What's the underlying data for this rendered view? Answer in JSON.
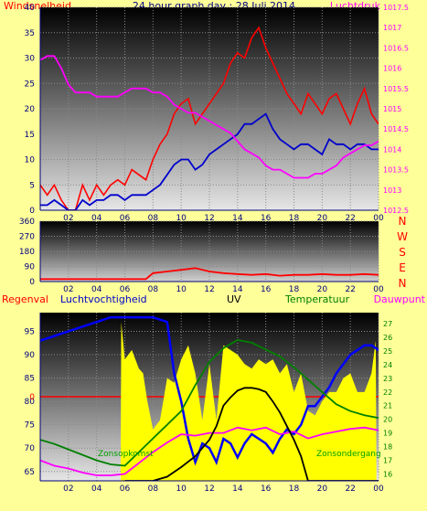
{
  "title": "24 hour graph day : 28 Juli 2014",
  "chart_data": [
    {
      "type": "line",
      "id": "wind_pressure",
      "xticks": [
        "02",
        "04",
        "06",
        "08",
        "10",
        "12",
        "14",
        "16",
        "18",
        "20",
        "22",
        "00"
      ],
      "left_label": "Windsnelheid",
      "right_label": "Luchtdruk",
      "yleft_ticks": [
        "0",
        "5",
        "10",
        "15",
        "20",
        "25",
        "30",
        "35",
        "40"
      ],
      "ylim_left": [
        0,
        40
      ],
      "yright_ticks": [
        "1012.5",
        "1013",
        "1013.5",
        "1014",
        "1014.5",
        "1015",
        "1015.5",
        "1016",
        "1016.5",
        "1017",
        "1017.5"
      ],
      "ylim_right": [
        1012.5,
        1017.5
      ],
      "series": [
        {
          "role": "wind_gust",
          "axis": "left",
          "color": "#ff0000",
          "x": [
            0,
            0.5,
            1,
            1.5,
            2,
            2.5,
            3,
            3.5,
            4,
            4.5,
            5,
            5.5,
            6,
            6.5,
            7,
            7.5,
            8,
            8.5,
            9,
            9.5,
            10,
            10.5,
            11,
            11.5,
            12,
            12.5,
            13,
            13.5,
            14,
            14.5,
            15,
            15.5,
            16,
            16.5,
            17,
            17.5,
            18,
            18.5,
            19,
            19.5,
            20,
            20.5,
            21,
            21.5,
            22,
            22.5,
            23,
            23.5,
            24
          ],
          "y": [
            5,
            3,
            5,
            2,
            0,
            0,
            5,
            2,
            5,
            3,
            5,
            6,
            5,
            8,
            7,
            6,
            10,
            13,
            15,
            19,
            21,
            22,
            17,
            19,
            21,
            23,
            25,
            29,
            31,
            30,
            34,
            36,
            32,
            29,
            26,
            23,
            21,
            19,
            23,
            21,
            19,
            22,
            23,
            20,
            17,
            21,
            24,
            19,
            17
          ]
        },
        {
          "role": "wind_avg",
          "axis": "left",
          "color": "#0000cc",
          "x": [
            0,
            0.5,
            1,
            1.5,
            2,
            2.5,
            3,
            3.5,
            4,
            4.5,
            5,
            5.5,
            6,
            6.5,
            7,
            7.5,
            8,
            8.5,
            9,
            9.5,
            10,
            10.5,
            11,
            11.5,
            12,
            12.5,
            13,
            13.5,
            14,
            14.5,
            15,
            15.5,
            16,
            16.5,
            17,
            17.5,
            18,
            18.5,
            19,
            19.5,
            20,
            20.5,
            21,
            21.5,
            22,
            22.5,
            23,
            23.5,
            24
          ],
          "y": [
            1,
            1,
            2,
            1,
            0,
            0,
            2,
            1,
            2,
            2,
            3,
            3,
            2,
            3,
            3,
            3,
            4,
            5,
            7,
            9,
            10,
            10,
            8,
            9,
            11,
            12,
            13,
            14,
            15,
            17,
            17,
            18,
            19,
            16,
            14,
            13,
            12,
            13,
            13,
            12,
            11,
            14,
            13,
            13,
            12,
            13,
            13,
            12,
            12
          ]
        },
        {
          "role": "pressure",
          "axis": "right",
          "color": "#ff00ff",
          "x": [
            0,
            0.5,
            1,
            1.5,
            2,
            2.5,
            3,
            3.5,
            4,
            4.5,
            5,
            5.5,
            6,
            6.5,
            7,
            7.5,
            8,
            8.5,
            9,
            9.5,
            10,
            10.5,
            11,
            11.5,
            12,
            12.5,
            13,
            13.5,
            14,
            14.5,
            15,
            15.5,
            16,
            16.5,
            17,
            17.5,
            18,
            18.5,
            19,
            19.5,
            20,
            20.5,
            21,
            21.5,
            22,
            22.5,
            23,
            23.5,
            24
          ],
          "y": [
            1016.2,
            1016.3,
            1016.3,
            1016.0,
            1015.6,
            1015.4,
            1015.4,
            1015.4,
            1015.3,
            1015.3,
            1015.3,
            1015.3,
            1015.4,
            1015.5,
            1015.5,
            1015.5,
            1015.4,
            1015.4,
            1015.3,
            1015.1,
            1015.0,
            1014.9,
            1014.9,
            1014.8,
            1014.7,
            1014.6,
            1014.5,
            1014.4,
            1014.2,
            1014.0,
            1013.9,
            1013.8,
            1013.6,
            1013.5,
            1013.5,
            1013.4,
            1013.3,
            1013.3,
            1013.3,
            1013.4,
            1013.4,
            1013.5,
            1013.6,
            1013.8,
            1013.9,
            1014.0,
            1014.1,
            1014.1,
            1014.2
          ]
        }
      ]
    },
    {
      "type": "line",
      "id": "wind_direction",
      "xticks": [
        "02",
        "04",
        "06",
        "08",
        "10",
        "12",
        "14",
        "16",
        "18",
        "20",
        "22",
        "00"
      ],
      "yleft_ticks": [
        "0",
        "90",
        "180",
        "270",
        "360"
      ],
      "ylim_left": [
        0,
        360
      ],
      "right_labels": [
        "N",
        "W",
        "S",
        "E",
        "N"
      ],
      "series": [
        {
          "role": "direction",
          "axis": "left",
          "color": "#ff0000",
          "x": [
            0,
            1,
            2,
            3,
            4,
            5,
            6,
            7,
            7.5,
            8,
            9,
            10,
            11,
            12,
            13,
            14,
            15,
            16,
            17,
            18,
            19,
            20,
            21,
            22,
            23,
            24
          ],
          "y": [
            15,
            15,
            15,
            15,
            15,
            15,
            15,
            15,
            15,
            50,
            60,
            70,
            80,
            60,
            50,
            45,
            40,
            45,
            35,
            40,
            40,
            45,
            40,
            40,
            45,
            40
          ]
        }
      ]
    },
    {
      "type": "line",
      "id": "rain_humidity_uv_temp",
      "xticks": [
        "02",
        "04",
        "06",
        "08",
        "10",
        "12",
        "14",
        "16",
        "18",
        "20",
        "22",
        "00"
      ],
      "labels": {
        "rain": "Regenval",
        "humidity": "Luchtvochtigheid",
        "uv": "UV",
        "temperature": "Temperatuur",
        "dewpoint": "Dauwpunt"
      },
      "annotations": {
        "sunrise": "Zonsopkomst",
        "sunset": "Zonsondergang"
      },
      "yleft_ticks": [
        "65",
        "70",
        "75",
        "80",
        "85",
        "90",
        "95"
      ],
      "ylim_left": [
        63,
        99
      ],
      "yright_ticks": [
        "16",
        "17",
        "18",
        "19",
        "20",
        "21",
        "22",
        "23",
        "24",
        "25",
        "26",
        "27"
      ],
      "ylim_right": [
        15.5,
        27.8
      ],
      "rain_level_label": "0",
      "series": [
        {
          "role": "solar",
          "axis": "left",
          "color": "#ffff00",
          "x": [
            5.7,
            5.75,
            6,
            6.5,
            7,
            7.3,
            7.6,
            8,
            8.5,
            9,
            9.5,
            10,
            10.5,
            11,
            11.5,
            12,
            12.5,
            13,
            13.5,
            14,
            14.5,
            15,
            15.5,
            16,
            16.5,
            17,
            17.5,
            18,
            18.5,
            19,
            19.5,
            20,
            20.5,
            21,
            21.5,
            22,
            22.5,
            23,
            23.5,
            23.8,
            23.85
          ],
          "y": [
            63,
            97,
            89,
            91,
            87,
            86,
            80,
            74,
            76,
            85,
            84,
            89,
            92,
            86,
            76,
            88,
            76,
            92,
            91,
            90,
            88,
            87,
            89,
            88,
            89,
            86,
            88,
            82,
            86,
            78,
            77,
            80,
            82,
            82,
            85,
            86,
            82,
            82,
            86,
            93,
            63
          ]
        },
        {
          "role": "humidity",
          "axis": "left",
          "color": "#0000ff",
          "x": [
            0,
            1,
            2,
            3,
            4,
            5,
            6,
            7,
            8,
            9,
            9.5,
            10,
            10.5,
            11,
            11.5,
            12,
            12.5,
            13,
            13.5,
            14,
            14.5,
            15,
            15.5,
            16,
            16.5,
            17,
            17.5,
            18,
            18.5,
            19,
            19.5,
            20,
            20.5,
            21,
            21.5,
            22,
            22.5,
            23,
            23.5,
            24
          ],
          "y": [
            93,
            94,
            95,
            96,
            97,
            98,
            98,
            98,
            98,
            97,
            86,
            80,
            72,
            67,
            71,
            70,
            67,
            72,
            71,
            68,
            71,
            73,
            72,
            71,
            69,
            72,
            74,
            73,
            75,
            79,
            79,
            81,
            83,
            86,
            88,
            90,
            91,
            92,
            92,
            91
          ]
        },
        {
          "role": "temperature",
          "axis": "right",
          "color": "#008000",
          "x": [
            0,
            1,
            2,
            3,
            4,
            5,
            6,
            7,
            8,
            9,
            10,
            11,
            12,
            13,
            14,
            15,
            16,
            17,
            18,
            19,
            20,
            21,
            22,
            23,
            24
          ],
          "y": [
            18.5,
            18.2,
            17.8,
            17.4,
            17.0,
            16.7,
            16.6,
            17.6,
            18.6,
            19.6,
            20.6,
            22.5,
            24.2,
            25.2,
            25.8,
            25.6,
            25.1,
            24.6,
            23.8,
            22.9,
            22.0,
            21.1,
            20.6,
            20.3,
            20.1
          ]
        },
        {
          "role": "dewpoint",
          "axis": "right",
          "color": "#ff00ff",
          "x": [
            0,
            1,
            2,
            3,
            4,
            5,
            6,
            7,
            8,
            9,
            10,
            11,
            12,
            13,
            14,
            15,
            16,
            17,
            18,
            19,
            20,
            21,
            22,
            23,
            24
          ],
          "y": [
            17.0,
            16.6,
            16.4,
            16.1,
            15.9,
            15.9,
            16.0,
            16.8,
            17.6,
            18.3,
            18.9,
            18.8,
            19.0,
            19.0,
            19.4,
            19.2,
            19.4,
            18.9,
            19.1,
            18.6,
            18.9,
            19.1,
            19.3,
            19.4,
            19.2
          ]
        },
        {
          "role": "uv",
          "axis": "right",
          "color": "#000000",
          "x": [
            6,
            7,
            8,
            9,
            10,
            11,
            12,
            12.5,
            13,
            13.5,
            14,
            14.5,
            15,
            15.5,
            16,
            16.5,
            17,
            17.5,
            18,
            18.5,
            19,
            24
          ],
          "y": [
            15.5,
            15.5,
            15.5,
            15.8,
            16.5,
            17.3,
            18.5,
            19.5,
            21.0,
            21.6,
            22.1,
            22.3,
            22.3,
            22.2,
            22.0,
            21.3,
            20.5,
            19.5,
            18.5,
            17.3,
            15.5,
            15.5
          ]
        }
      ]
    }
  ]
}
